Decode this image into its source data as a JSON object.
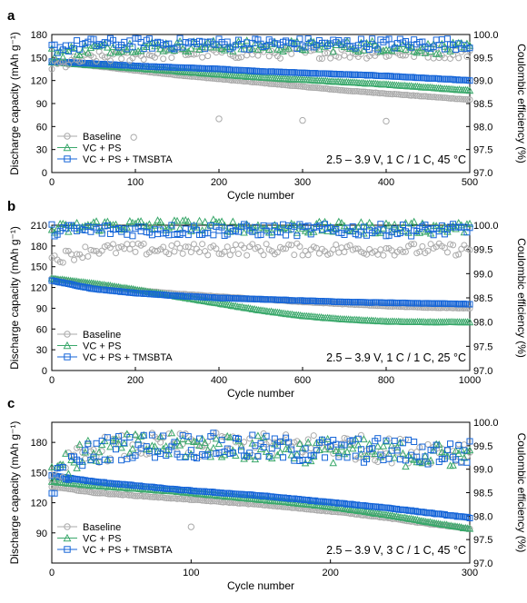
{
  "colors": {
    "Baseline": "#aaaaaa",
    "VC + PS": "#3aa86b",
    "VC + PS + TMSBTA": "#1565d8"
  },
  "chart_data": [
    {
      "type": "scatter",
      "panel": "a",
      "xlabel": "Cycle number",
      "ylabel": "Discharge capacity (mAh g⁻¹)",
      "ylabel_right": "Coulombic efficiency (%)",
      "xlim": [
        0,
        500
      ],
      "xticks": [
        0,
        100,
        200,
        300,
        400,
        500
      ],
      "ylim": [
        0,
        180
      ],
      "yticks": [
        0,
        30,
        60,
        90,
        120,
        150,
        180
      ],
      "ylim_right": [
        97.0,
        100.0
      ],
      "yticks_right": [
        "97.0",
        "97.5",
        "98.0",
        "98.5",
        "99.0",
        "99.5",
        "100.0"
      ],
      "annotation": "2.5 – 3.9 V, 1 C / 1 C, 45 °C",
      "legend": [
        "Baseline",
        "VC + PS",
        "VC + PS + TMSBTA"
      ],
      "legend_position": "bottom-left",
      "series": [
        {
          "name": "Baseline",
          "marker": "circle",
          "axis": "left",
          "x": [
            0,
            50,
            100,
            150,
            200,
            250,
            300,
            350,
            400,
            450,
            500
          ],
          "y": [
            144,
            139,
            133,
            127,
            122,
            117,
            112,
            107,
            103,
            99,
            95
          ]
        },
        {
          "name": "VC + PS",
          "marker": "triangle",
          "axis": "left",
          "x": [
            0,
            50,
            100,
            150,
            200,
            250,
            300,
            350,
            400,
            450,
            500
          ],
          "y": [
            144,
            140,
            136,
            132,
            128,
            124,
            121,
            118,
            115,
            111,
            107
          ]
        },
        {
          "name": "VC + PS + TMSBTA",
          "marker": "square",
          "axis": "left",
          "x": [
            0,
            50,
            100,
            150,
            200,
            250,
            300,
            350,
            400,
            450,
            500
          ],
          "y": [
            145,
            142,
            139,
            137,
            135,
            132,
            130,
            128,
            126,
            123,
            120
          ]
        },
        {
          "name": "Baseline",
          "marker": "circle",
          "axis": "right",
          "x": [
            0,
            50,
            100,
            150,
            200,
            250,
            300,
            350,
            400,
            450,
            500
          ],
          "y": [
            99.3,
            99.5,
            99.55,
            99.6,
            99.6,
            99.6,
            99.6,
            99.6,
            99.6,
            99.6,
            99.6
          ]
        },
        {
          "name": "VC + PS",
          "marker": "triangle",
          "axis": "right",
          "x": [
            0,
            50,
            100,
            150,
            200,
            250,
            300,
            350,
            400,
            450,
            500
          ],
          "y": [
            99.6,
            99.7,
            99.75,
            99.75,
            99.75,
            99.75,
            99.75,
            99.75,
            99.75,
            99.7,
            99.7
          ]
        },
        {
          "name": "VC + PS + TMSBTA",
          "marker": "square",
          "axis": "right",
          "x": [
            0,
            50,
            100,
            150,
            200,
            250,
            300,
            350,
            400,
            450,
            500
          ],
          "y": [
            99.7,
            99.8,
            99.8,
            99.8,
            99.8,
            99.8,
            99.8,
            99.8,
            99.8,
            99.8,
            99.8
          ]
        },
        {
          "name": "Baseline",
          "marker": "circle",
          "axis": "left",
          "outliers": true,
          "x": [
            98,
            200,
            300,
            400
          ],
          "y": [
            46,
            70,
            68,
            67
          ]
        }
      ]
    },
    {
      "type": "scatter",
      "panel": "b",
      "xlabel": "Cycle number",
      "ylabel": "Discharge capacity (mAh g⁻¹)",
      "ylabel_right": "Coulombic efficiency (%)",
      "xlim": [
        0,
        1000
      ],
      "xticks": [
        0,
        200,
        400,
        600,
        800,
        1000
      ],
      "ylim": [
        0,
        210
      ],
      "yticks": [
        0,
        30,
        60,
        90,
        120,
        150,
        180,
        210
      ],
      "ylim_right": [
        97.0,
        100.0
      ],
      "yticks_right": [
        "97.0",
        "97.5",
        "98.0",
        "98.5",
        "99.0",
        "99.5",
        "100.0"
      ],
      "annotation": "2.5 – 3.9 V, 1 C / 1 C, 25 °C",
      "legend": [
        "Baseline",
        "VC + PS",
        "VC + PS + TMSBTA"
      ],
      "legend_position": "bottom-left",
      "series": [
        {
          "name": "Baseline",
          "marker": "circle",
          "axis": "left",
          "x": [
            0,
            100,
            200,
            300,
            400,
            500,
            600,
            700,
            800,
            900,
            1000
          ],
          "y": [
            133,
            123,
            116,
            111,
            107,
            103,
            99,
            96,
            93,
            91,
            90
          ]
        },
        {
          "name": "VC + PS",
          "marker": "triangle",
          "axis": "left",
          "x": [
            0,
            100,
            200,
            300,
            400,
            500,
            600,
            700,
            800,
            900,
            1000
          ],
          "y": [
            133,
            126,
            117,
            107,
            97,
            87,
            79,
            74,
            71,
            70,
            70
          ]
        },
        {
          "name": "VC + PS + TMSBTA",
          "marker": "square",
          "axis": "left",
          "x": [
            0,
            100,
            200,
            300,
            400,
            500,
            600,
            700,
            800,
            900,
            1000
          ],
          "y": [
            130,
            118,
            112,
            108,
            105,
            103,
            101,
            99,
            98,
            97,
            96
          ]
        },
        {
          "name": "Baseline",
          "marker": "circle",
          "axis": "right",
          "x": [
            0,
            100,
            200,
            300,
            400,
            500,
            600,
            700,
            800,
            900,
            1000
          ],
          "y": [
            99.3,
            99.5,
            99.5,
            99.5,
            99.5,
            99.5,
            99.5,
            99.5,
            99.5,
            99.5,
            99.5
          ]
        },
        {
          "name": "VC + PS",
          "marker": "triangle",
          "axis": "right",
          "x": [
            0,
            100,
            200,
            300,
            400,
            500,
            600,
            700,
            800,
            900,
            1000
          ],
          "y": [
            99.9,
            100.0,
            100.0,
            100.0,
            100.0,
            99.95,
            99.95,
            99.95,
            99.95,
            99.95,
            99.95
          ]
        },
        {
          "name": "VC + PS + TMSBTA",
          "marker": "square",
          "axis": "right",
          "x": [
            0,
            100,
            200,
            300,
            400,
            500,
            600,
            700,
            800,
            900,
            1000
          ],
          "y": [
            99.9,
            99.9,
            99.9,
            99.9,
            99.9,
            99.9,
            99.9,
            99.9,
            99.9,
            99.9,
            99.9
          ]
        }
      ]
    },
    {
      "type": "scatter",
      "panel": "c",
      "xlabel": "Cycle number",
      "ylabel": "Discharge capacity (mAh g⁻¹)",
      "ylabel_right": "Coulombic efficiency (%)",
      "xlim": [
        0,
        300
      ],
      "xticks": [
        0,
        100,
        200,
        300
      ],
      "ylim": [
        60,
        200
      ],
      "yticks": [
        90,
        120,
        150,
        180
      ],
      "ylim_right": [
        97.0,
        100.0
      ],
      "yticks_right": [
        "97.0",
        "97.5",
        "98.0",
        "98.5",
        "99.0",
        "99.5",
        "100.0"
      ],
      "annotation": "2.5 – 3.9 V, 3 C / 1 C, 45 °C",
      "legend": [
        "Baseline",
        "VC + PS",
        "VC + PS + TMSBTA"
      ],
      "legend_position": "bottom-left",
      "series": [
        {
          "name": "Baseline",
          "marker": "circle",
          "axis": "left",
          "x": [
            0,
            30,
            60,
            90,
            120,
            150,
            180,
            210,
            240,
            270,
            300
          ],
          "y": [
            136,
            130,
            127,
            124,
            121,
            118,
            114,
            110,
            105,
            99,
            94
          ]
        },
        {
          "name": "VC + PS",
          "marker": "triangle",
          "axis": "left",
          "x": [
            0,
            30,
            60,
            90,
            120,
            150,
            180,
            210,
            240,
            270,
            300
          ],
          "y": [
            141,
            137,
            134,
            131,
            127,
            123,
            119,
            114,
            108,
            101,
            94
          ]
        },
        {
          "name": "VC + PS + TMSBTA",
          "marker": "square",
          "axis": "left",
          "x": [
            0,
            30,
            60,
            90,
            120,
            150,
            180,
            210,
            240,
            270,
            300
          ],
          "y": [
            147,
            141,
            137,
            133,
            130,
            127,
            123,
            119,
            115,
            110,
            105
          ]
        },
        {
          "name": "Baseline",
          "marker": "circle",
          "axis": "right",
          "x": [
            0,
            30,
            60,
            90,
            120,
            150,
            180,
            210,
            240,
            270,
            300
          ],
          "y": [
            98.9,
            99.4,
            99.5,
            99.5,
            99.5,
            99.5,
            99.5,
            99.5,
            99.4,
            99.4,
            99.4
          ]
        },
        {
          "name": "VC + PS",
          "marker": "triangle",
          "axis": "right",
          "x": [
            0,
            30,
            60,
            90,
            120,
            150,
            180,
            210,
            240,
            270,
            300
          ],
          "y": [
            99.0,
            99.4,
            99.5,
            99.5,
            99.5,
            99.45,
            99.4,
            99.4,
            99.35,
            99.3,
            99.3
          ]
        },
        {
          "name": "VC + PS + TMSBTA",
          "marker": "square",
          "axis": "right",
          "x": [
            0,
            30,
            60,
            90,
            120,
            150,
            180,
            210,
            240,
            270,
            300
          ],
          "y": [
            98.7,
            99.4,
            99.5,
            99.5,
            99.5,
            99.45,
            99.4,
            99.4,
            99.4,
            99.35,
            99.35
          ]
        },
        {
          "name": "Baseline",
          "marker": "circle",
          "axis": "left",
          "outliers": true,
          "x": [
            100
          ],
          "y": [
            96
          ]
        }
      ]
    }
  ]
}
